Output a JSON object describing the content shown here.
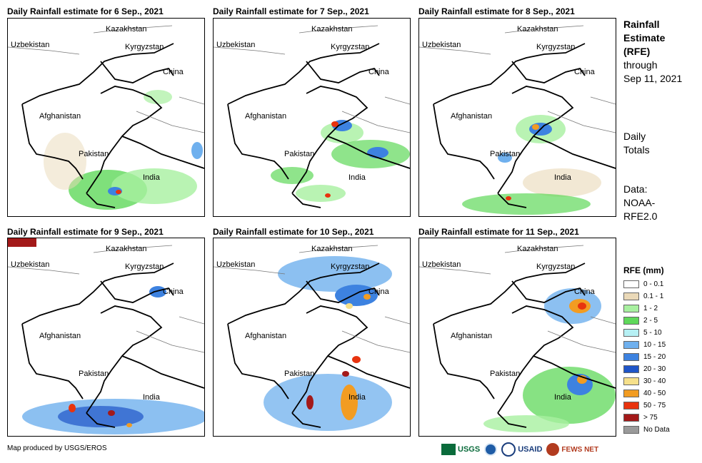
{
  "panels": [
    {
      "title": "Daily Rainfall estimate for 6 Sep., 2021"
    },
    {
      "title": "Daily Rainfall estimate for 7 Sep., 2021"
    },
    {
      "title": "Daily Rainfall estimate for 8 Sep., 2021"
    },
    {
      "title": "Daily Rainfall estimate for 9 Sep., 2021"
    },
    {
      "title": "Daily Rainfall estimate for 10 Sep., 2021"
    },
    {
      "title": "Daily Rainfall estimate for 11 Sep., 2021"
    }
  ],
  "countries": {
    "kazakhstan": "Kazakhstan",
    "uzbekistan": "Uzbekistan",
    "kyrgyzstan": "Kyrgyzstan",
    "china": "China",
    "afghanistan": "Afghanistan",
    "pakistan": "Pakistan",
    "india": "India"
  },
  "side": {
    "title_lines": [
      "Rainfall",
      "Estimate",
      "(RFE)"
    ],
    "through": "through",
    "date": "Sep 11, 2021",
    "daily": "Daily",
    "totals": "Totals",
    "data1": "Data:",
    "data2": "NOAA-",
    "data3": "RFE2.0"
  },
  "legend": {
    "title": "RFE (mm)",
    "items": [
      {
        "label": "0 - 0.1",
        "color": "#ffffff"
      },
      {
        "label": "0.1 - 1",
        "color": "#ead9b8"
      },
      {
        "label": "1 - 2",
        "color": "#a8f0a0"
      },
      {
        "label": "2 - 5",
        "color": "#5fd85a"
      },
      {
        "label": "5 - 10",
        "color": "#b6f0f4"
      },
      {
        "label": "10 - 15",
        "color": "#6fb0ee"
      },
      {
        "label": "15 - 20",
        "color": "#3d82e0"
      },
      {
        "label": "20 - 30",
        "color": "#1f55c8"
      },
      {
        "label": "30 - 40",
        "color": "#f6e08a"
      },
      {
        "label": "40 - 50",
        "color": "#f29c22"
      },
      {
        "label": "50 - 75",
        "color": "#e8330e"
      },
      {
        "label": "> 75",
        "color": "#a31919"
      },
      {
        "label": "No Data",
        "color": "#9a9a9a"
      }
    ]
  },
  "credit": "Map produced by USGS/EROS",
  "logos": {
    "usgs": "USGS",
    "usaid": "USAID",
    "fews": "FEWS NET"
  }
}
